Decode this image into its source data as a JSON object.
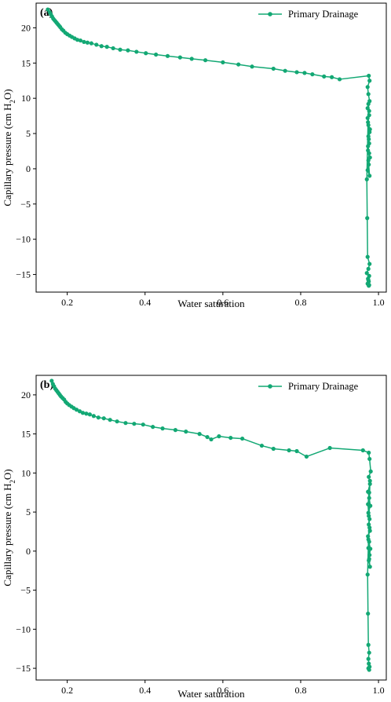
{
  "colors": {
    "series": "#13a874",
    "axis": "#000000",
    "background": "#ffffff"
  },
  "chart_data": [
    {
      "type": "line",
      "panel_label": "(a)",
      "xlabel": "Water saturation",
      "ylabel_parts": [
        "Capillary pressure (cm H",
        "2",
        "O)"
      ],
      "xlim": [
        0.12,
        1.02
      ],
      "ylim": [
        -17.5,
        23.5
      ],
      "xticks": [
        0.2,
        0.4,
        0.6,
        0.8,
        1.0
      ],
      "xtick_labels": [
        "0.2",
        "0.4",
        "0.6",
        "0.8",
        "1.0"
      ],
      "yticks": [
        20,
        15,
        10,
        5,
        0,
        -5,
        -10,
        -15
      ],
      "ytick_labels": [
        "20",
        "15",
        "10",
        "5",
        "0",
        "−5",
        "−10",
        "−15"
      ],
      "legend": {
        "label": "Primary Drainage",
        "position": "top-right"
      },
      "grid": false,
      "series": [
        {
          "name": "Primary Drainage",
          "x": [
            0.15,
            0.155,
            0.158,
            0.161,
            0.164,
            0.167,
            0.17,
            0.173,
            0.176,
            0.179,
            0.182,
            0.186,
            0.19,
            0.195,
            0.2,
            0.206,
            0.212,
            0.219,
            0.226,
            0.234,
            0.243,
            0.252,
            0.262,
            0.275,
            0.288,
            0.302,
            0.318,
            0.336,
            0.356,
            0.378,
            0.402,
            0.428,
            0.458,
            0.49,
            0.52,
            0.555,
            0.6,
            0.64,
            0.675,
            0.73,
            0.76,
            0.79,
            0.81,
            0.83,
            0.86,
            0.88,
            0.9,
            0.975,
            0.977,
            0.972,
            0.974,
            0.977,
            0.972,
            0.976,
            0.973,
            0.978,
            0.974,
            0.976,
            0.973,
            0.978,
            0.975,
            0.972,
            0.977,
            0.974,
            0.976,
            0.973,
            0.975,
            0.977,
            0.974,
            0.972,
            0.976,
            0.974,
            0.97,
            0.971,
            0.972,
            0.977,
            0.974,
            0.97,
            0.976,
            0.973,
            0.975,
            0.972,
            0.976,
            0.974,
            0.975
          ],
          "y": [
            22.6,
            22.2,
            21.9,
            21.6,
            21.3,
            21.1,
            20.9,
            20.7,
            20.5,
            20.3,
            20.1,
            19.8,
            19.6,
            19.3,
            19.1,
            18.9,
            18.7,
            18.5,
            18.3,
            18.2,
            18.0,
            17.9,
            17.8,
            17.6,
            17.4,
            17.3,
            17.1,
            16.9,
            16.8,
            16.6,
            16.4,
            16.2,
            16.0,
            15.8,
            15.6,
            15.4,
            15.1,
            14.8,
            14.5,
            14.2,
            13.9,
            13.7,
            13.6,
            13.4,
            13.1,
            13.0,
            12.7,
            13.2,
            12.5,
            11.6,
            10.6,
            9.6,
            8.6,
            7.6,
            6.6,
            5.6,
            4.6,
            3.6,
            2.6,
            1.6,
            0.6,
            -0.2,
            -1.0,
            1.2,
            2.2,
            3.2,
            4.2,
            5.2,
            6.2,
            7.2,
            8.2,
            9.2,
            -1.5,
            -7.0,
            -12.5,
            -13.5,
            -14.2,
            -14.8,
            -15.2,
            -15.6,
            -16.0,
            -16.3,
            -16.5,
            -15.8,
            -16.6
          ]
        }
      ]
    },
    {
      "type": "line",
      "panel_label": "(b)",
      "xlabel": "Water saturation",
      "ylabel_parts": [
        "Capillary pressure (cm H",
        "2",
        "O)"
      ],
      "xlim": [
        0.12,
        1.02
      ],
      "ylim": [
        -16.5,
        22.5
      ],
      "xticks": [
        0.2,
        0.4,
        0.6,
        0.8,
        1.0
      ],
      "xtick_labels": [
        "0.2",
        "0.4",
        "0.6",
        "0.8",
        "1.0"
      ],
      "yticks": [
        20,
        15,
        10,
        5,
        0,
        -5,
        -10,
        -15
      ],
      "ytick_labels": [
        "20",
        "15",
        "10",
        "5",
        "0",
        "−5",
        "−10",
        "−15"
      ],
      "legend": {
        "label": "Primary Drainage",
        "position": "top-right"
      },
      "grid": false,
      "series": [
        {
          "name": "Primary Drainage",
          "x": [
            0.16,
            0.163,
            0.166,
            0.169,
            0.172,
            0.175,
            0.178,
            0.181,
            0.184,
            0.188,
            0.192,
            0.196,
            0.2,
            0.205,
            0.211,
            0.217,
            0.224,
            0.232,
            0.24,
            0.249,
            0.258,
            0.268,
            0.28,
            0.294,
            0.31,
            0.328,
            0.35,
            0.372,
            0.395,
            0.42,
            0.445,
            0.478,
            0.505,
            0.54,
            0.56,
            0.57,
            0.59,
            0.62,
            0.65,
            0.7,
            0.73,
            0.77,
            0.79,
            0.815,
            0.875,
            0.96,
            0.975,
            0.977,
            0.98,
            0.975,
            0.978,
            0.973,
            0.976,
            0.979,
            0.974,
            0.977,
            0.975,
            0.978,
            0.973,
            0.976,
            0.974,
            0.977,
            0.975,
            0.978,
            0.976,
            0.979,
            0.974,
            0.977,
            0.975,
            0.973,
            0.976,
            0.978,
            0.972,
            0.973,
            0.974,
            0.976,
            0.974,
            0.975,
            0.977,
            0.974,
            0.976
          ],
          "y": [
            21.8,
            21.4,
            21.1,
            20.8,
            20.6,
            20.4,
            20.2,
            20.0,
            19.8,
            19.6,
            19.4,
            19.1,
            18.9,
            18.7,
            18.5,
            18.3,
            18.1,
            17.9,
            17.7,
            17.6,
            17.5,
            17.3,
            17.1,
            17.0,
            16.8,
            16.6,
            16.4,
            16.3,
            16.2,
            15.9,
            15.7,
            15.5,
            15.3,
            15.0,
            14.6,
            14.3,
            14.7,
            14.5,
            14.4,
            13.5,
            13.1,
            12.9,
            12.8,
            12.1,
            13.2,
            12.9,
            12.6,
            11.8,
            10.2,
            9.5,
            8.6,
            7.6,
            6.8,
            5.8,
            4.9,
            4.1,
            3.4,
            2.6,
            1.9,
            1.2,
            0.4,
            -0.5,
            -1.2,
            -2.0,
            -1.0,
            0.3,
            1.5,
            3.0,
            4.5,
            6.0,
            7.5,
            9.0,
            -3.0,
            -8.0,
            -12.0,
            -13.0,
            -13.8,
            -14.4,
            -14.8,
            -15.0,
            -15.2
          ]
        }
      ]
    }
  ]
}
